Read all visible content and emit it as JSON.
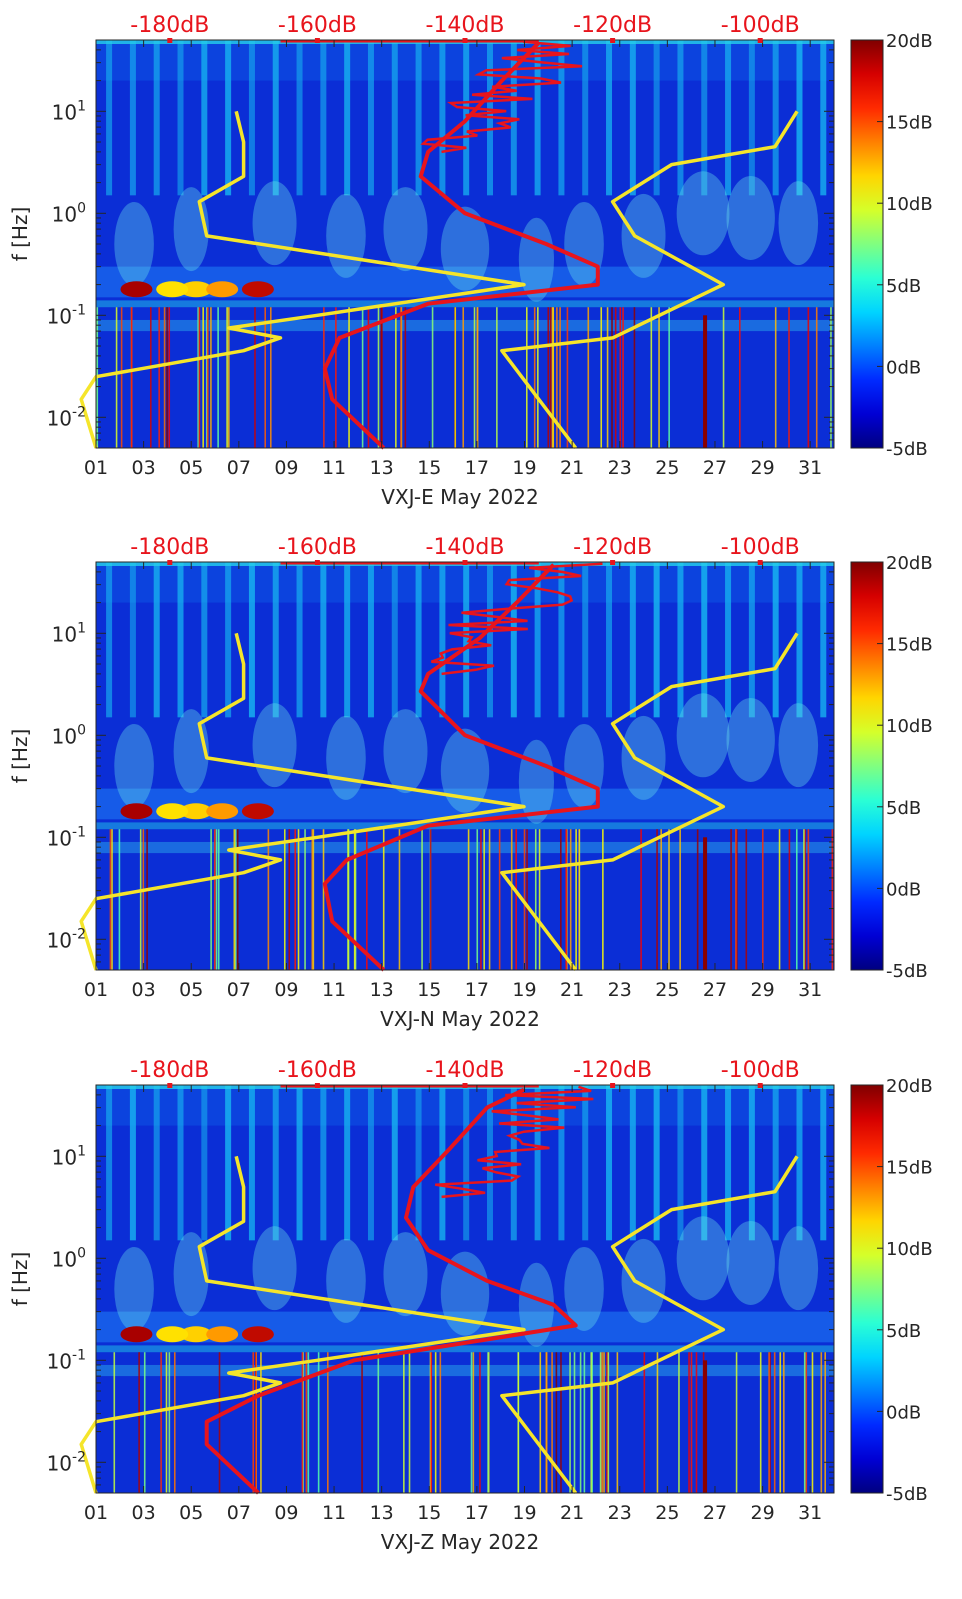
{
  "figure": {
    "colorbar": {
      "ticks": [
        "20dB",
        "15dB",
        "10dB",
        "5dB",
        "0dB",
        "-5dB"
      ],
      "range": [
        -5,
        20
      ],
      "colormap": "jet"
    },
    "top_axis_ticks": [
      "-180dB",
      "-160dB",
      "-140dB",
      "-120dB",
      "-100dB"
    ],
    "top_axis_color": "#e8141c",
    "x_ticks": [
      "01",
      "03",
      "05",
      "07",
      "09",
      "11",
      "13",
      "15",
      "17",
      "19",
      "21",
      "23",
      "25",
      "27",
      "29",
      "31"
    ],
    "ylabel": "f [Hz]",
    "y_ticks": [
      "10",
      "10",
      "10",
      "10"
    ],
    "y_tick_exponents": [
      "1",
      "0",
      "-1",
      "-2"
    ],
    "line_colors": {
      "noise_models": "#f5e52a",
      "psd_median": "#e8141c"
    }
  },
  "chart_data": [
    {
      "type": "heatmap",
      "xlabel": "VXJ-E May 2022",
      "ylabel": "f [Hz]",
      "xlim": [
        1,
        32
      ],
      "ylim_hz": [
        0.005,
        50
      ],
      "yscale": "log",
      "top_xlim_db": [
        -190,
        -90
      ],
      "colorbar_db": [
        -5,
        20
      ],
      "series": [
        {
          "name": "",
          "color": "#f5e52a",
          "points_db_hz": [
            [
              -190,
              0.005
            ],
            [
              -192,
              0.015
            ],
            [
              -190,
              0.025
            ],
            [
              -170,
              0.045
            ],
            [
              -165,
              0.06
            ],
            [
              -172,
              0.075
            ],
            [
              -160,
              0.1
            ],
            [
              -132,
              0.2
            ],
            [
              -175,
              0.6
            ],
            [
              -176,
              1.3
            ],
            [
              -170,
              2.3
            ],
            [
              -170,
              5
            ],
            [
              -171,
              10
            ]
          ]
        },
        {
          "name": "",
          "color": "#f5e52a",
          "points_db_hz": [
            [
              -125,
              0.005
            ],
            [
              -135,
              0.045
            ],
            [
              -120,
              0.06
            ],
            [
              -105,
              0.2
            ],
            [
              -117,
              0.6
            ],
            [
              -120,
              1.3
            ],
            [
              -112,
              3
            ],
            [
              -98,
              4.5
            ],
            [
              -95,
              10
            ]
          ]
        },
        {
          "name": "",
          "color": "#e8141c",
          "points_db_hz": [
            [
              -151,
              0.005
            ],
            [
              -158,
              0.015
            ],
            [
              -159,
              0.03
            ],
            [
              -157,
              0.06
            ],
            [
              -145,
              0.13
            ],
            [
              -122,
              0.2
            ],
            [
              -122,
              0.3
            ],
            [
              -129,
              0.5
            ],
            [
              -140,
              1
            ],
            [
              -146,
              2.3
            ],
            [
              -145,
              4
            ],
            [
              -140,
              8
            ],
            [
              -135,
              20
            ],
            [
              -130,
              47
            ]
          ]
        }
      ]
    },
    {
      "type": "heatmap",
      "xlabel": "VXJ-N May 2022",
      "ylabel": "f [Hz]",
      "xlim": [
        1,
        32
      ],
      "ylim_hz": [
        0.005,
        50
      ],
      "yscale": "log",
      "top_xlim_db": [
        -190,
        -90
      ],
      "colorbar_db": [
        -5,
        20
      ],
      "series": [
        {
          "name": "",
          "color": "#f5e52a",
          "points_db_hz": [
            [
              -190,
              0.005
            ],
            [
              -192,
              0.015
            ],
            [
              -190,
              0.025
            ],
            [
              -170,
              0.045
            ],
            [
              -165,
              0.06
            ],
            [
              -172,
              0.075
            ],
            [
              -160,
              0.1
            ],
            [
              -132,
              0.2
            ],
            [
              -175,
              0.6
            ],
            [
              -176,
              1.3
            ],
            [
              -170,
              2.3
            ],
            [
              -170,
              5
            ],
            [
              -171,
              10
            ]
          ]
        },
        {
          "name": "",
          "color": "#f5e52a",
          "points_db_hz": [
            [
              -125,
              0.005
            ],
            [
              -135,
              0.045
            ],
            [
              -120,
              0.06
            ],
            [
              -105,
              0.2
            ],
            [
              -117,
              0.6
            ],
            [
              -120,
              1.3
            ],
            [
              -112,
              3
            ],
            [
              -98,
              4.5
            ],
            [
              -95,
              10
            ]
          ]
        },
        {
          "name": "",
          "color": "#e8141c",
          "points_db_hz": [
            [
              -151,
              0.005
            ],
            [
              -158,
              0.015
            ],
            [
              -159,
              0.035
            ],
            [
              -156,
              0.06
            ],
            [
              -145,
              0.13
            ],
            [
              -122,
              0.2
            ],
            [
              -122,
              0.3
            ],
            [
              -129,
              0.5
            ],
            [
              -140,
              1
            ],
            [
              -146,
              2.7
            ],
            [
              -145,
              4
            ],
            [
              -138,
              9
            ],
            [
              -133,
              20
            ],
            [
              -128,
              47
            ]
          ]
        }
      ]
    },
    {
      "type": "heatmap",
      "xlabel": "VXJ-Z May 2022",
      "ylabel": "f [Hz]",
      "xlim": [
        1,
        32
      ],
      "ylim_hz": [
        0.005,
        50
      ],
      "yscale": "log",
      "top_xlim_db": [
        -190,
        -90
      ],
      "colorbar_db": [
        -5,
        20
      ],
      "series": [
        {
          "name": "",
          "color": "#f5e52a",
          "points_db_hz": [
            [
              -190,
              0.005
            ],
            [
              -192,
              0.015
            ],
            [
              -190,
              0.025
            ],
            [
              -170,
              0.045
            ],
            [
              -165,
              0.06
            ],
            [
              -172,
              0.075
            ],
            [
              -160,
              0.1
            ],
            [
              -132,
              0.2
            ],
            [
              -175,
              0.6
            ],
            [
              -176,
              1.3
            ],
            [
              -170,
              2.3
            ],
            [
              -170,
              5
            ],
            [
              -171,
              10
            ]
          ]
        },
        {
          "name": "",
          "color": "#f5e52a",
          "points_db_hz": [
            [
              -125,
              0.005
            ],
            [
              -135,
              0.045
            ],
            [
              -120,
              0.06
            ],
            [
              -105,
              0.2
            ],
            [
              -117,
              0.6
            ],
            [
              -120,
              1.3
            ],
            [
              -112,
              3
            ],
            [
              -98,
              4.5
            ],
            [
              -95,
              10
            ]
          ]
        },
        {
          "name": "",
          "color": "#e8141c",
          "points_db_hz": [
            [
              -168,
              0.005
            ],
            [
              -175,
              0.015
            ],
            [
              -175,
              0.025
            ],
            [
              -168,
              0.045
            ],
            [
              -155,
              0.1
            ],
            [
              -125,
              0.22
            ],
            [
              -128,
              0.35
            ],
            [
              -137,
              0.6
            ],
            [
              -145,
              1.2
            ],
            [
              -148,
              2.5
            ],
            [
              -147,
              5
            ],
            [
              -142,
              12
            ],
            [
              -137,
              30
            ],
            [
              -132,
              45
            ]
          ]
        }
      ]
    }
  ]
}
